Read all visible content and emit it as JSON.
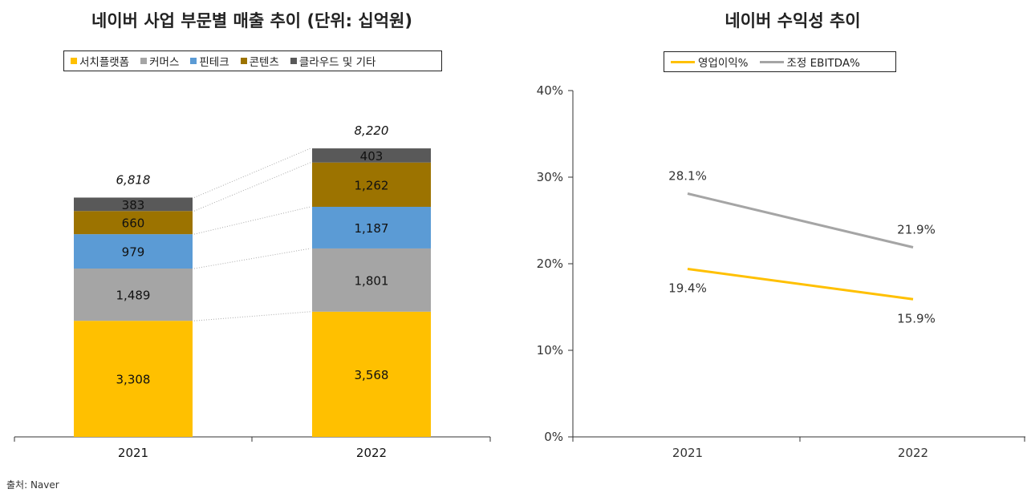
{
  "source": "출처: Naver",
  "chart_data": [
    {
      "type": "bar",
      "stacked": true,
      "title": "네이버 사업 부문별 매출 추이 (단위: 십억원)",
      "categories": [
        "2021",
        "2022"
      ],
      "series": [
        {
          "name": "서치플랫폼",
          "values": [
            3308,
            3568
          ],
          "labels": [
            "3,308",
            "3,568"
          ],
          "color": "#FFC000"
        },
        {
          "name": "커머스",
          "values": [
            1489,
            1801
          ],
          "labels": [
            "1,489",
            "1,801"
          ],
          "color": "#A5A5A5"
        },
        {
          "name": "핀테크",
          "values": [
            979,
            1187
          ],
          "labels": [
            "979",
            "1,187"
          ],
          "color": "#5B9BD5"
        },
        {
          "name": "콘텐츠",
          "values": [
            660,
            1262
          ],
          "labels": [
            "660",
            "1,262"
          ],
          "color": "#9C7300"
        },
        {
          "name": "클라우드 및 기타",
          "values": [
            383,
            403
          ],
          "labels": [
            "383",
            "403"
          ],
          "color": "#595959"
        }
      ],
      "totals": [
        "6,818",
        "8,220"
      ],
      "legend_position": "top",
      "ylim": [
        0,
        9000
      ],
      "xlabel": "",
      "ylabel": ""
    },
    {
      "type": "line",
      "title": "네이버 수익성 추이",
      "x": [
        "2021",
        "2022"
      ],
      "series": [
        {
          "name": "영업이익%",
          "values": [
            19.4,
            15.9
          ],
          "labels": [
            "19.4%",
            "15.9%"
          ],
          "color": "#FFC000"
        },
        {
          "name": "조정 EBITDA%",
          "values": [
            28.1,
            21.9
          ],
          "labels": [
            "28.1%",
            "21.9%"
          ],
          "color": "#A5A5A5"
        }
      ],
      "yticks": [
        "0%",
        "10%",
        "20%",
        "30%",
        "40%"
      ],
      "ylim": [
        0,
        40
      ],
      "legend_position": "top",
      "xlabel": "",
      "ylabel": ""
    }
  ]
}
